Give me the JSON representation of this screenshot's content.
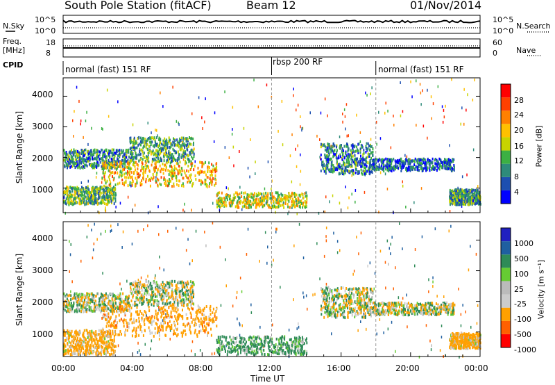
{
  "header": {
    "station": "South Pole Station (fitACF)",
    "beam": "Beam 12",
    "date": "01/Nov/2014"
  },
  "nsky": {
    "label": "N.Sky",
    "right_label": "N.Search",
    "left_ticks": [
      "10^5",
      "10^0"
    ],
    "right_ticks": [
      "10^5",
      "10^0"
    ]
  },
  "freq": {
    "label_line1": "Freq.",
    "label_line2": "[MHz]",
    "right_label": "Nave",
    "left_ticks": [
      "18",
      "8"
    ],
    "right_ticks": [
      "60",
      "0"
    ]
  },
  "cpid": {
    "label": "CPID",
    "segments": [
      {
        "text": "normal (fast) 151 RF",
        "start_hour": 0
      },
      {
        "text": "rbsp 200 RF",
        "start_hour": 12
      },
      {
        "text": "normal (fast) 151 RF",
        "start_hour": 18
      }
    ]
  },
  "colors": {
    "power": [
      "#0000ff",
      "#1d4fb0",
      "#2e8b7a",
      "#3cb043",
      "#c8d400",
      "#ffc000",
      "#ff8000",
      "#ff4000",
      "#ff0000"
    ],
    "velocity": [
      "#ff0000",
      "#ff6000",
      "#ffa000",
      "#cccccc",
      "#bbbbbb",
      "#66cc33",
      "#2e8b57",
      "#1f5fa0",
      "#2020c0"
    ]
  },
  "chart_data": [
    {
      "type": "heatmap",
      "ylabel": "Slant Range [km]",
      "x_range": [
        0,
        24
      ],
      "ylim": [
        200,
        4600
      ],
      "yticks": [
        "1000",
        "2000",
        "3000",
        "4000"
      ],
      "colorbar": {
        "label": "Power [dB]",
        "ticks": [
          "4",
          "8",
          "12",
          "16",
          "20",
          "24",
          "28"
        ],
        "range": [
          0,
          30
        ]
      },
      "echo_bands": [
        {
          "hours": [
            0,
            3.8
          ],
          "range_km": [
            1700,
            2300
          ],
          "value": 8
        },
        {
          "hours": [
            3.8,
            7.5
          ],
          "range_km": [
            1900,
            2700
          ],
          "value": 10
        },
        {
          "hours": [
            2.2,
            8.8
          ],
          "range_km": [
            1100,
            1900
          ],
          "value": 18
        },
        {
          "hours": [
            0,
            3.0
          ],
          "range_km": [
            500,
            1100
          ],
          "value": 12
        },
        {
          "hours": [
            8.8,
            14.0
          ],
          "range_km": [
            400,
            900
          ],
          "value": 16
        },
        {
          "hours": [
            14.8,
            17.8
          ],
          "range_km": [
            1500,
            2500
          ],
          "value": 8
        },
        {
          "hours": [
            17.8,
            22.5
          ],
          "range_km": [
            1600,
            2000
          ],
          "value": 6
        },
        {
          "hours": [
            22.2,
            24.0
          ],
          "range_km": [
            500,
            1000
          ],
          "value": 10
        }
      ]
    },
    {
      "type": "heatmap",
      "ylabel": "Slant Range [km]",
      "xlabel": "Time UT",
      "x_range": [
        0,
        24
      ],
      "xticks": [
        "00:00",
        "04:00",
        "08:00",
        "12:00",
        "16:00",
        "20:00",
        "00:00"
      ],
      "ylim": [
        200,
        4600
      ],
      "yticks": [
        "1000",
        "2000",
        "3000",
        "4000"
      ],
      "colorbar": {
        "label": "Velocity [m s⁻¹]",
        "ticks": [
          "1000",
          "500",
          "100",
          "25",
          "-25",
          "-100",
          "-500",
          "-1000"
        ]
      },
      "echo_bands": [
        {
          "hours": [
            0,
            3.8
          ],
          "range_km": [
            1700,
            2300
          ],
          "value": 0
        },
        {
          "hours": [
            3.8,
            7.5
          ],
          "range_km": [
            1900,
            2700
          ],
          "value": 0
        },
        {
          "hours": [
            2.2,
            8.8
          ],
          "range_km": [
            900,
            1900
          ],
          "value": -300
        },
        {
          "hours": [
            0,
            3.0
          ],
          "range_km": [
            300,
            1100
          ],
          "value": -200
        },
        {
          "hours": [
            8.8,
            14.0
          ],
          "range_km": [
            300,
            900
          ],
          "value": 200
        },
        {
          "hours": [
            14.8,
            17.8
          ],
          "range_km": [
            1500,
            2500
          ],
          "value": 0
        },
        {
          "hours": [
            17.8,
            22.5
          ],
          "range_km": [
            1600,
            2000
          ],
          "value": 0
        },
        {
          "hours": [
            22.2,
            24.0
          ],
          "range_km": [
            500,
            1000
          ],
          "value": -200
        }
      ]
    }
  ]
}
